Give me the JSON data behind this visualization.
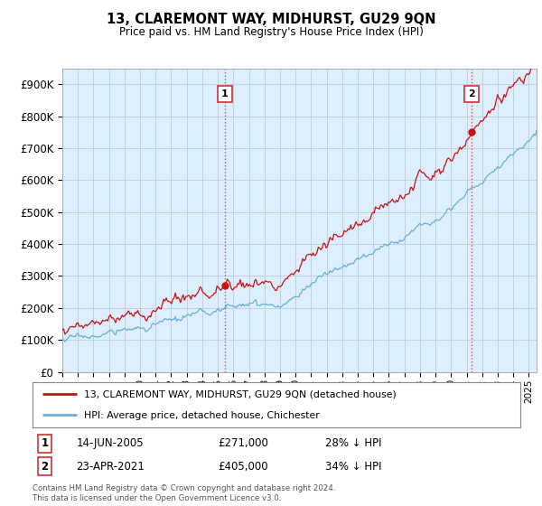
{
  "title": "13, CLAREMONT WAY, MIDHURST, GU29 9QN",
  "subtitle": "Price paid vs. HM Land Registry's House Price Index (HPI)",
  "ylim": [
    0,
    950000
  ],
  "yticks": [
    0,
    100000,
    200000,
    300000,
    400000,
    500000,
    600000,
    700000,
    800000,
    900000
  ],
  "ytick_labels": [
    "£0",
    "£100K",
    "£200K",
    "£300K",
    "£400K",
    "£500K",
    "£600K",
    "£700K",
    "£800K",
    "£900K"
  ],
  "hpi_color": "#6baed6",
  "price_color": "#cc1111",
  "vline_color": "#cc3333",
  "sale1_year": 2005.45,
  "sale1_price": 271000,
  "sale1_label": "1",
  "sale2_year": 2021.31,
  "sale2_price": 405000,
  "sale2_label": "2",
  "legend_line1": "13, CLAREMONT WAY, MIDHURST, GU29 9QN (detached house)",
  "legend_line2": "HPI: Average price, detached house, Chichester",
  "table_row1": [
    "1",
    "14-JUN-2005",
    "£271,000",
    "28% ↓ HPI"
  ],
  "table_row2": [
    "2",
    "23-APR-2021",
    "£405,000",
    "34% ↓ HPI"
  ],
  "footnote": "Contains HM Land Registry data © Crown copyright and database right 2024.\nThis data is licensed under the Open Government Licence v3.0.",
  "background_color": "#ffffff",
  "plot_bg_color": "#ddeeff",
  "grid_color": "#bbccdd"
}
